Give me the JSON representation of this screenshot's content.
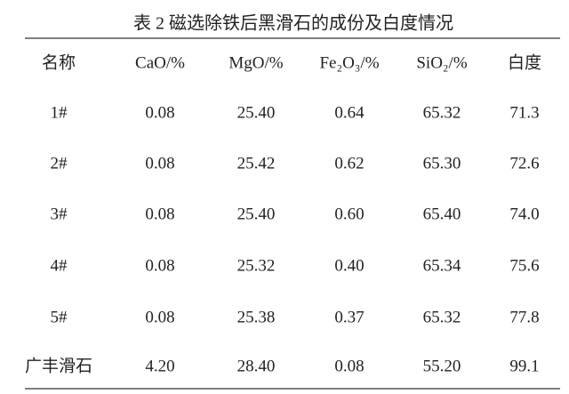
{
  "title": "表 2  磁选除铁后黑滑石的成份及白度情况",
  "table": {
    "header": [
      "名称",
      "CaO/%",
      "MgO/%",
      "Fe₂O₃/%",
      "SiO₂/%",
      "白度"
    ],
    "rows": [
      [
        "1#",
        "0.08",
        "25.40",
        "0.64",
        "65.32",
        "71.3"
      ],
      [
        "2#",
        "0.08",
        "25.42",
        "0.62",
        "65.30",
        "72.6"
      ],
      [
        "3#",
        "0.08",
        "25.40",
        "0.60",
        "65.40",
        "74.0"
      ],
      [
        "4#",
        "0.08",
        "25.32",
        "0.40",
        "65.34",
        "75.6"
      ],
      [
        "5#",
        "0.08",
        "25.38",
        "0.37",
        "65.32",
        "77.8"
      ],
      [
        "广丰滑石",
        "4.20",
        "28.40",
        "0.08",
        "55.20",
        "99.1"
      ]
    ]
  }
}
